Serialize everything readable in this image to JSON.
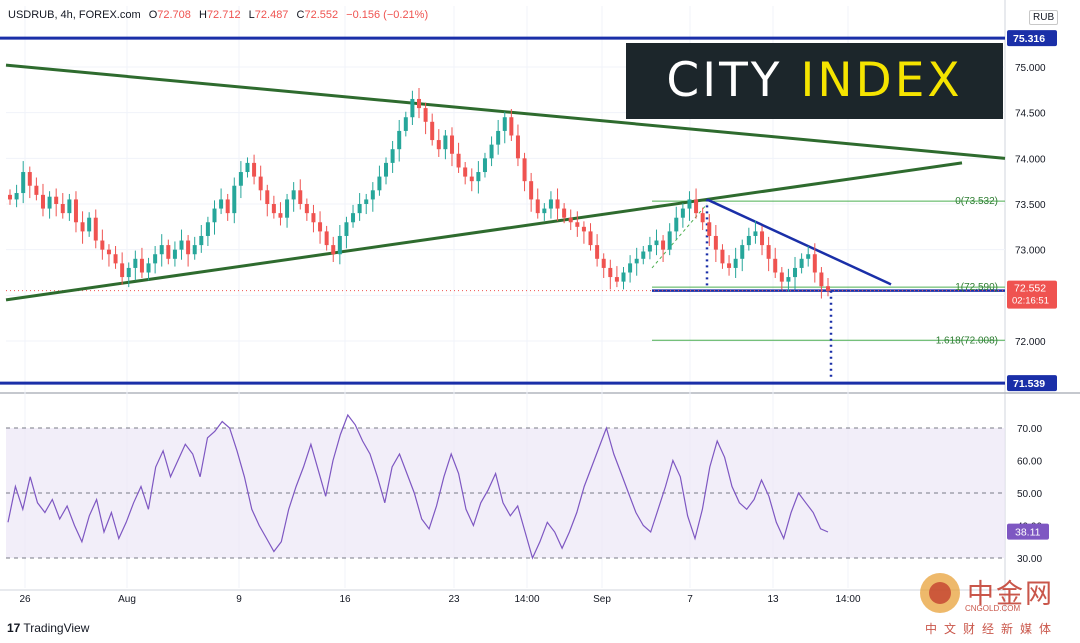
{
  "header": {
    "symbol": "USDRUB, 4h, FOREX.com",
    "open_label": "O",
    "open": "72.708",
    "high_label": "H",
    "high": "72.712",
    "low_label": "L",
    "low": "72.487",
    "close_label": "C",
    "close": "72.552",
    "change": "−0.156 (−0.21%)"
  },
  "currency": "RUB",
  "logo": {
    "part1": "CITY",
    "part2": "INDEX"
  },
  "brand": {
    "mark": "17",
    "name": "TradingView"
  },
  "watermark": {
    "name": "中金网",
    "domain": "CNGOLD.COM",
    "tagline": "中文财经新媒体"
  },
  "colors": {
    "bull": "#26a69a",
    "bear": "#ef5350",
    "navy": "#1a2fa8",
    "green_line": "#2e6b2e",
    "fib": "#4caf50",
    "rsi": "#7e57c2",
    "rsi_band": "#ede7f6"
  },
  "chart_data": [
    {
      "type": "candlestick",
      "title": "",
      "ylim": [
        71.4,
        75.4
      ],
      "y_ticks": [
        "75.000",
        "74.500",
        "74.000",
        "73.500",
        "73.000",
        "72.500",
        "72.000"
      ],
      "x_ticks": [
        "26",
        "Aug",
        "9",
        "16",
        "23",
        "14:00",
        "Sep",
        "7",
        "13",
        "14:00"
      ],
      "horizontal_levels": [
        {
          "name": "resistance",
          "value": 75.316,
          "label": "75.316"
        },
        {
          "name": "support",
          "value": 71.539,
          "label": "71.539"
        },
        {
          "name": "neckline",
          "value": 72.551,
          "label": "72.551"
        }
      ],
      "current_price": {
        "value": 72.552,
        "label": "72.552",
        "countdown": "02:16:51"
      },
      "fibonacci": [
        {
          "ratio": "0",
          "value": 73.532,
          "label": "0(73.532)"
        },
        {
          "ratio": "1",
          "value": 72.59,
          "label": "1(72.590)"
        },
        {
          "ratio": "1.618",
          "value": 72.008,
          "label": "1.618(72.008)"
        }
      ],
      "close_series": [
        73.55,
        73.62,
        73.85,
        73.7,
        73.6,
        73.45,
        73.58,
        73.5,
        73.4,
        73.55,
        73.3,
        73.2,
        73.35,
        73.1,
        73.0,
        72.95,
        72.85,
        72.7,
        72.8,
        72.9,
        72.75,
        72.85,
        72.95,
        73.05,
        72.9,
        73.0,
        73.1,
        72.95,
        73.05,
        73.15,
        73.3,
        73.45,
        73.55,
        73.4,
        73.7,
        73.85,
        73.95,
        73.8,
        73.65,
        73.5,
        73.4,
        73.35,
        73.55,
        73.65,
        73.5,
        73.4,
        73.3,
        73.2,
        73.05,
        72.95,
        73.15,
        73.3,
        73.4,
        73.5,
        73.55,
        73.65,
        73.8,
        73.95,
        74.1,
        74.3,
        74.45,
        74.65,
        74.55,
        74.4,
        74.2,
        74.1,
        74.25,
        74.05,
        73.9,
        73.8,
        73.75,
        73.85,
        74.0,
        74.15,
        74.3,
        74.45,
        74.25,
        74.0,
        73.75,
        73.55,
        73.4,
        73.45,
        73.55,
        73.45,
        73.35,
        73.3,
        73.25,
        73.2,
        73.05,
        72.9,
        72.8,
        72.7,
        72.65,
        72.75,
        72.85,
        72.9,
        72.98,
        73.05,
        73.1,
        73.0,
        73.2,
        73.35,
        73.45,
        73.55,
        73.4,
        73.3,
        73.15,
        73.0,
        72.85,
        72.8,
        72.9,
        73.05,
        73.15,
        73.2,
        73.05,
        72.9,
        72.75,
        72.65,
        72.7,
        72.8,
        72.9,
        72.95,
        72.75,
        72.6,
        72.55
      ],
      "trendlines": [
        {
          "name": "triangle-upper",
          "from": 75.02,
          "to": 74.0
        },
        {
          "name": "triangle-lower",
          "from": 72.45,
          "to": 73.95
        },
        {
          "name": "descending-resistance",
          "from": 73.55,
          "to": 72.62
        }
      ],
      "projection": {
        "from": 72.55,
        "to": 71.54
      }
    },
    {
      "type": "line",
      "title": "",
      "ylim": [
        27,
        77
      ],
      "y_ticks": [
        "70.00",
        "60.00",
        "50.00",
        "40.00",
        "30.00"
      ],
      "bands": [
        30,
        50,
        70
      ],
      "current": {
        "value": 38.11,
        "label": "38.11"
      },
      "series": [
        {
          "values": [
            41,
            52,
            45,
            55,
            47,
            44,
            48,
            42,
            46,
            40,
            35,
            43,
            48,
            38,
            44,
            36,
            41,
            47,
            52,
            45,
            58,
            63,
            55,
            60,
            65,
            62,
            55,
            67,
            69,
            72,
            70,
            63,
            55,
            45,
            40,
            36,
            32,
            35,
            45,
            52,
            58,
            65,
            57,
            49,
            60,
            68,
            74,
            71,
            66,
            62,
            55,
            47,
            58,
            62,
            56,
            50,
            42,
            39,
            46,
            55,
            62,
            56,
            45,
            40,
            47,
            51,
            56,
            47,
            43,
            46,
            38,
            30,
            35,
            41,
            38,
            33,
            38,
            44,
            52,
            58,
            64,
            70,
            62,
            56,
            50,
            44,
            40,
            38,
            45,
            52,
            60,
            55,
            43,
            36,
            45,
            58,
            66,
            61,
            52,
            47,
            45,
            48,
            54,
            49,
            41,
            36,
            44,
            50,
            47,
            44,
            39,
            38
          ]
        }
      ]
    }
  ]
}
